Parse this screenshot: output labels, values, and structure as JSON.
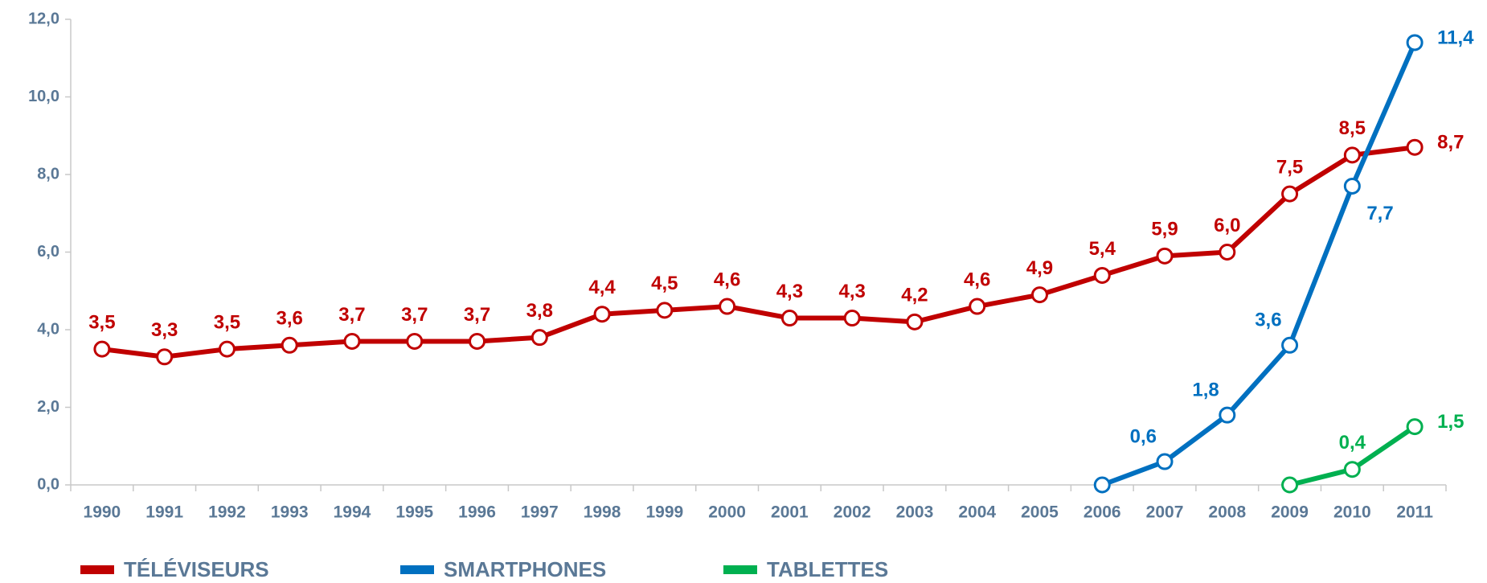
{
  "chart_data": {
    "type": "line",
    "categories": [
      "1990",
      "1991",
      "1992",
      "1993",
      "1994",
      "1995",
      "1996",
      "1997",
      "1998",
      "1999",
      "2000",
      "2001",
      "2002",
      "2003",
      "2004",
      "2005",
      "2006",
      "2007",
      "2008",
      "2009",
      "2010",
      "2011"
    ],
    "series": [
      {
        "name": "TÉLÉVISEURS",
        "color": "#c00000",
        "values": [
          3.5,
          3.3,
          3.5,
          3.6,
          3.7,
          3.7,
          3.7,
          3.8,
          4.4,
          4.5,
          4.6,
          4.3,
          4.3,
          4.2,
          4.6,
          4.9,
          5.4,
          5.9,
          6.0,
          7.5,
          8.5,
          8.7
        ],
        "value_labels": [
          "3,5",
          "3,3",
          "3,5",
          "3,6",
          "3,7",
          "3,7",
          "3,7",
          "3,8",
          "4,4",
          "4,5",
          "4,6",
          "4,3",
          "4,3",
          "4,2",
          "4,6",
          "4,9",
          "5,4",
          "5,9",
          "6,0",
          "7,5",
          "8,5",
          "8,7"
        ]
      },
      {
        "name": "SMARTPHONES",
        "color": "#0070c0",
        "values": [
          null,
          null,
          null,
          null,
          null,
          null,
          null,
          null,
          null,
          null,
          null,
          null,
          null,
          null,
          null,
          null,
          0,
          0.6,
          1.8,
          3.6,
          7.7,
          11.4
        ],
        "value_labels": [
          null,
          null,
          null,
          null,
          null,
          null,
          null,
          null,
          null,
          null,
          null,
          null,
          null,
          null,
          null,
          null,
          null,
          "0,6",
          "1,8",
          "3,6",
          "7,7",
          "11,4"
        ]
      },
      {
        "name": "TABLETTES",
        "color": "#00b050",
        "values": [
          null,
          null,
          null,
          null,
          null,
          null,
          null,
          null,
          null,
          null,
          null,
          null,
          null,
          null,
          null,
          null,
          null,
          null,
          null,
          0,
          0.4,
          1.5
        ],
        "value_labels": [
          null,
          null,
          null,
          null,
          null,
          null,
          null,
          null,
          null,
          null,
          null,
          null,
          null,
          null,
          null,
          null,
          null,
          null,
          null,
          null,
          "0,4",
          "1,5"
        ]
      }
    ],
    "ylim": [
      0,
      12
    ],
    "yticks": [
      {
        "value": 0,
        "label": "0,0"
      },
      {
        "value": 2,
        "label": "2,0"
      },
      {
        "value": 4,
        "label": "4,0"
      },
      {
        "value": 6,
        "label": "6,0"
      },
      {
        "value": 8,
        "label": "8,0"
      },
      {
        "value": 10,
        "label": "10,0"
      },
      {
        "value": 12,
        "label": "12,0"
      }
    ],
    "legend": "bottom"
  }
}
